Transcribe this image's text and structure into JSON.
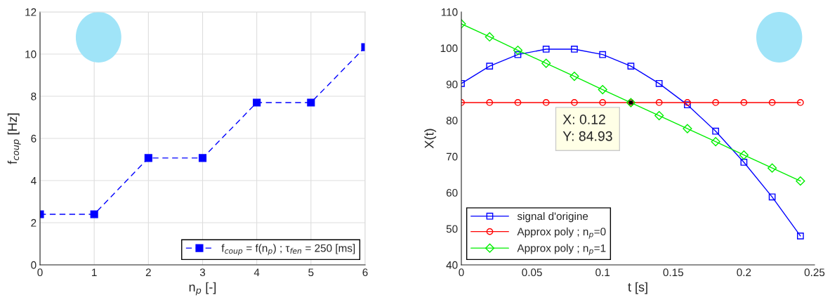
{
  "chart_data": [
    {
      "type": "line",
      "xlabel": "n$_{p}$ [-]",
      "ylabel": "f$_{coup}$ [Hz]",
      "x": [
        0,
        1,
        2,
        3,
        4,
        5,
        6
      ],
      "series": [
        {
          "name": "f$_{coup}$ = f(n$_{p}$) ; τ$_{fen}$ = 250 [ms]",
          "color": "#0000ff",
          "values": [
            2.4,
            2.4,
            5.07,
            5.07,
            7.7,
            7.7,
            10.33
          ],
          "marker": "square",
          "line_style": "dashed"
        }
      ],
      "xlim": [
        0,
        6
      ],
      "xticks": [
        0,
        1,
        2,
        3,
        4,
        5,
        6
      ],
      "ylim": [
        0,
        12
      ],
      "yticks": [
        0,
        2,
        4,
        6,
        8,
        10,
        12
      ],
      "grid": true,
      "legend": "bottom right"
    },
    {
      "type": "line",
      "xlabel": "t [s]",
      "ylabel": "X(t)",
      "x": [
        0,
        0.02,
        0.04,
        0.06,
        0.08,
        0.1,
        0.12,
        0.14,
        0.16,
        0.18,
        0.2,
        0.22,
        0.24
      ],
      "series": [
        {
          "name": "signal d'origine",
          "color": "#0000ff",
          "values": [
            90.2,
            95.0,
            98.2,
            99.7,
            99.7,
            98.2,
            95.0,
            90.2,
            84.3,
            77.0,
            68.4,
            58.8,
            48.0
          ],
          "marker": "square",
          "line_style": "solid"
        },
        {
          "name": "Approx poly ; n$_{p}$=0",
          "color": "#ff0000",
          "values": [
            84.93,
            84.93,
            84.93,
            84.93,
            84.93,
            84.93,
            84.93,
            84.93,
            84.93,
            84.93,
            84.93,
            84.93,
            84.93
          ],
          "marker": "circle",
          "line_style": "solid"
        },
        {
          "name": "Approx poly ; n$_{p}$=1",
          "color": "#00ee00",
          "values": [
            106.7,
            103.1,
            99.4,
            95.8,
            92.2,
            88.5,
            84.9,
            81.3,
            77.7,
            74.1,
            70.4,
            66.8,
            63.2
          ],
          "marker": "diamond",
          "line_style": "solid"
        }
      ],
      "annotations": [
        {
          "text": "X: 0.12\nY: 84.93",
          "x": 0.12,
          "y": 84.93
        }
      ],
      "xlim": [
        0,
        0.25
      ],
      "xticks": [
        0,
        0.05,
        0.1,
        0.15,
        0.2,
        0.25
      ],
      "ylim": [
        40,
        110
      ],
      "yticks": [
        40,
        50,
        60,
        70,
        80,
        90,
        100,
        110
      ],
      "grid": false,
      "legend": "bottom left"
    }
  ]
}
